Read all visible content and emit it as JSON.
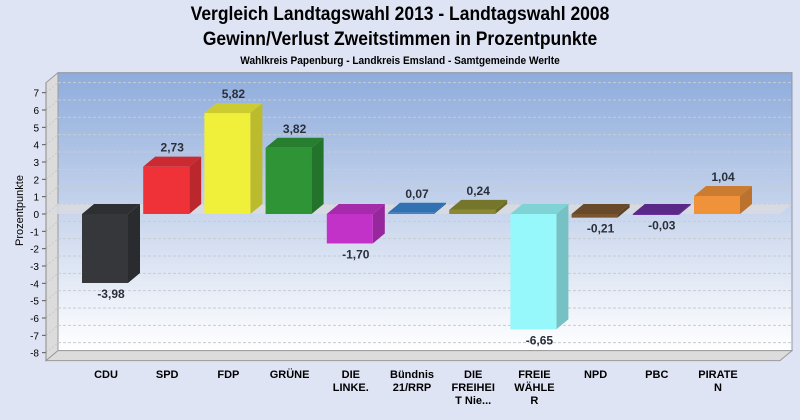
{
  "chart_data": {
    "type": "bar",
    "title": "Vergleich Landtagswahl 2013 - Landtagswahl 2008",
    "subtitle": "Gewinn/Verlust Zweitstimmen in Prozentpunkte",
    "subsubtitle": "Wahlkreis Papenburg - Landkreis Emsland - Samtgemeinde Werlte",
    "xlabel": "",
    "ylabel": "Prozentpunkte",
    "ylim": [
      -8,
      7
    ],
    "yticks": [
      7,
      6,
      5,
      4,
      3,
      2,
      1,
      0,
      -1,
      -2,
      -3,
      -4,
      -5,
      -6,
      -7,
      -8
    ],
    "grid": true,
    "style": "3d",
    "categories": [
      "CDU",
      "SPD",
      "FDP",
      "GRÜNE",
      "DIE LINKE.",
      "Bündnis 21/RRP",
      "DIE FREIHEIT Nie...",
      "FREIE WÄHLER",
      "NPD",
      "PBC",
      "PIRATEN"
    ],
    "category_labels_wrapped": [
      [
        "CDU"
      ],
      [
        "SPD"
      ],
      [
        "FDP"
      ],
      [
        "GRÜNE"
      ],
      [
        "DIE",
        "LINKE."
      ],
      [
        "Bündnis",
        "21/RRP"
      ],
      [
        "DIE",
        "FREIHEI",
        "T Nie..."
      ],
      [
        "FREIE",
        "WÄHLE",
        "R"
      ],
      [
        "NPD"
      ],
      [
        "PBC"
      ],
      [
        "PIRATE",
        "N"
      ]
    ],
    "values": [
      -3.98,
      2.73,
      5.82,
      3.82,
      -1.7,
      0.07,
      0.24,
      -6.65,
      -0.21,
      -0.03,
      1.04
    ],
    "data_labels": [
      "-3,98",
      "2,73",
      "5,82",
      "3,82",
      "-1,70",
      "0,07",
      "0,24",
      "-6,65",
      "-0,21",
      "-0,03",
      "1,04"
    ],
    "colors": [
      "#35373b",
      "#ef3238",
      "#f0f03a",
      "#2e9436",
      "#c232c8",
      "#3a84d0",
      "#8a8a32",
      "#96f8fa",
      "#7a5630",
      "#6a30a0",
      "#f0923a"
    ]
  }
}
